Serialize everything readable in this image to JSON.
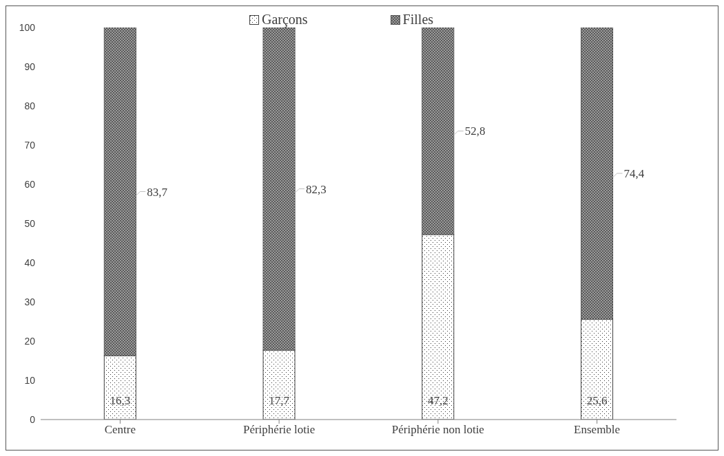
{
  "chart_data": {
    "type": "bar",
    "stacked": true,
    "categories": [
      "Centre",
      "Périphérie lotie",
      "Périphérie non lotie",
      "Ensemble"
    ],
    "series": [
      {
        "name": "Garçons",
        "color": "#ffffff",
        "values": [
          16.3,
          17.7,
          47.2,
          25.6
        ],
        "value_labels": [
          "16,3",
          "17,7",
          "47,2",
          "25,6"
        ]
      },
      {
        "name": "Filles",
        "color": "#5a5a5a",
        "values": [
          83.7,
          82.3,
          52.8,
          74.4
        ],
        "value_labels": [
          "83,7",
          "82,3",
          "52,8",
          "74,4"
        ]
      }
    ],
    "ylim": [
      0,
      100
    ],
    "yticks": [
      0,
      10,
      20,
      30,
      40,
      50,
      60,
      70,
      80,
      90,
      100
    ],
    "grid": false,
    "legend": "top"
  }
}
